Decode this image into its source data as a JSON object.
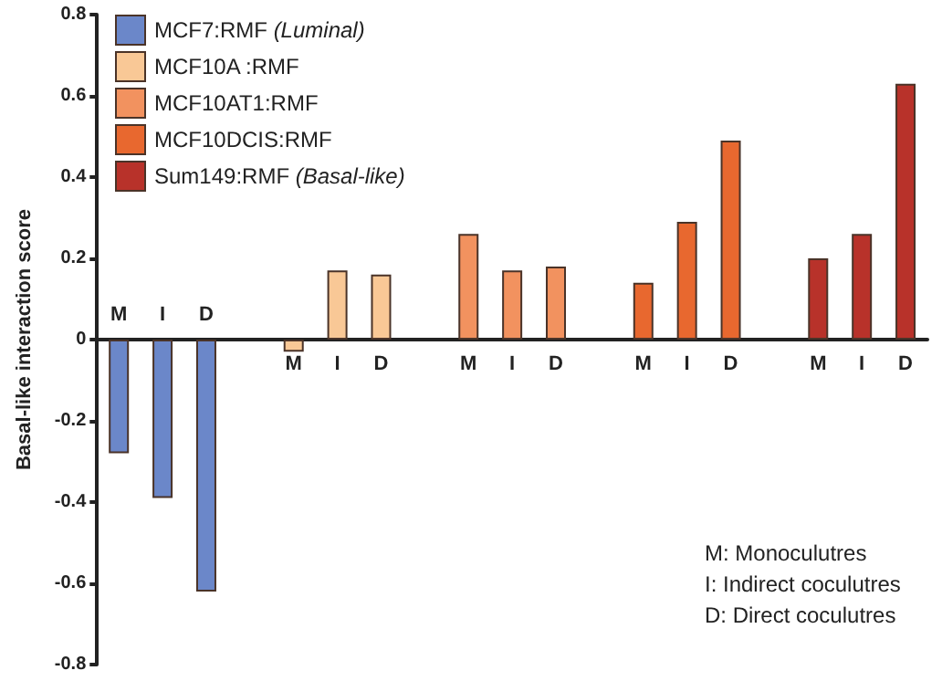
{
  "chart_data": {
    "type": "bar",
    "ylabel": "Basal-like interaction score",
    "categories": [
      "M",
      "I",
      "D",
      null,
      "M",
      "I",
      "D",
      null,
      "M",
      "I",
      "D",
      null,
      "M",
      "I",
      "D",
      null,
      "M",
      "I",
      "D"
    ],
    "series": [
      {
        "name": "MCF7:RMF (Luminal)",
        "color": "#6b87c9",
        "values": [
          -0.28,
          -0.39,
          -0.62,
          null,
          null,
          null,
          null,
          null,
          null,
          null,
          null,
          null,
          null,
          null,
          null,
          null,
          null,
          null,
          null
        ]
      },
      {
        "name": "MCF10A :RMF",
        "color": "#f9c896",
        "values": [
          null,
          null,
          null,
          null,
          -0.03,
          0.17,
          0.16,
          null,
          null,
          null,
          null,
          null,
          null,
          null,
          null,
          null,
          null,
          null,
          null
        ]
      },
      {
        "name": "MCF10AT1:RMF",
        "color": "#f2925f",
        "values": [
          null,
          null,
          null,
          null,
          null,
          null,
          null,
          null,
          0.26,
          0.17,
          0.18,
          null,
          null,
          null,
          null,
          null,
          null,
          null,
          null
        ]
      },
      {
        "name": "MCF10DCIS:RMF",
        "color": "#e8682f",
        "values": [
          null,
          null,
          null,
          null,
          null,
          null,
          null,
          null,
          null,
          null,
          null,
          null,
          0.14,
          0.29,
          0.49,
          null,
          null,
          null,
          null
        ]
      },
      {
        "name": "Sum149:RMF (Basal-like)",
        "color": "#b8322a",
        "values": [
          null,
          null,
          null,
          null,
          null,
          null,
          null,
          null,
          null,
          null,
          null,
          null,
          null,
          null,
          null,
          null,
          0.2,
          0.26,
          0.63
        ]
      }
    ],
    "ylim": [
      -0.8,
      0.8
    ],
    "yticks": [
      -0.8,
      -0.6,
      -0.4,
      -0.2,
      0,
      0.2,
      0.4,
      0.6,
      0.8
    ],
    "legend": "top left",
    "annotations": [
      "M: Monoculutres",
      "I: Indirect coculutres",
      "D: Direct coculutres"
    ]
  }
}
